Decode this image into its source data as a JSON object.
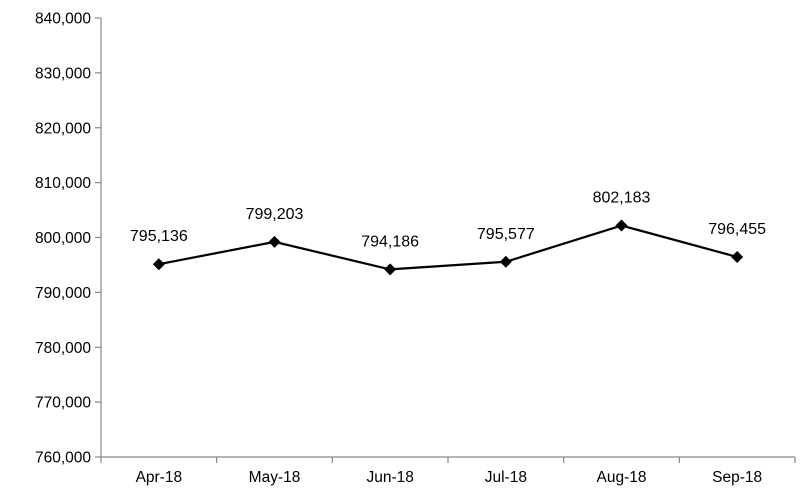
{
  "chart_data": {
    "type": "line",
    "title": "",
    "xlabel": "",
    "ylabel": "",
    "categories": [
      "Apr-18",
      "May-18",
      "Jun-18",
      "Jul-18",
      "Aug-18",
      "Sep-18"
    ],
    "series": [
      {
        "values": [
          795136,
          799203,
          794186,
          795577,
          802183,
          796455
        ],
        "data_labels": [
          "795,136",
          "799,203",
          "794,186",
          "795,577",
          "802,183",
          "796,455"
        ],
        "color": "#000000",
        "marker": "diamond"
      }
    ],
    "ylim": [
      760000,
      840000
    ],
    "y_ticks": [
      760000,
      770000,
      780000,
      790000,
      800000,
      810000,
      820000,
      830000,
      840000
    ],
    "y_tick_labels": [
      "760,000",
      "770,000",
      "780,000",
      "790,000",
      "800,000",
      "810,000",
      "820,000",
      "830,000",
      "840,000"
    ],
    "grid": false,
    "legend": "none"
  }
}
